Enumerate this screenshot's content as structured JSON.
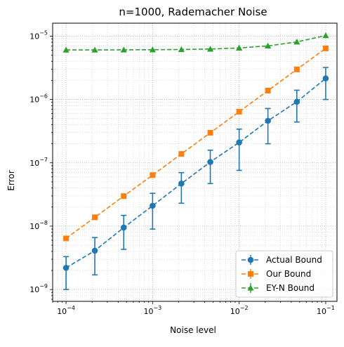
{
  "chart_data": {
    "type": "line",
    "title": "n=1000, Rademacher Noise",
    "xlabel": "Noise level",
    "ylabel": "Error",
    "xscale": "log",
    "yscale": "log",
    "xlim": [
      7e-05,
      0.135
    ],
    "ylim": [
      6.5e-10,
      1.6e-05
    ],
    "grid": true,
    "grid_style": "dotted, major and minor",
    "legend_position": "lower-right",
    "x_ticks": [
      {
        "base": "10",
        "exp": "−4",
        "value": 0.0001
      },
      {
        "base": "10",
        "exp": "−3",
        "value": 0.001
      },
      {
        "base": "10",
        "exp": "−2",
        "value": 0.01
      },
      {
        "base": "10",
        "exp": "−1",
        "value": 0.1
      }
    ],
    "y_ticks": [
      {
        "base": "10",
        "exp": "−9",
        "value": 1e-09
      },
      {
        "base": "10",
        "exp": "−8",
        "value": 1e-08
      },
      {
        "base": "10",
        "exp": "−7",
        "value": 1e-07
      },
      {
        "base": "10",
        "exp": "−6",
        "value": 1e-06
      },
      {
        "base": "10",
        "exp": "−5",
        "value": 1e-05
      }
    ],
    "x": [
      0.0001,
      0.000215,
      0.000464,
      0.001,
      0.00215,
      0.00464,
      0.01,
      0.0215,
      0.0464,
      0.1
    ],
    "series": [
      {
        "name": "Actual Bound",
        "color": "#1f77b4",
        "marker": "circle",
        "linestyle": "dashed",
        "values": [
          2.2e-09,
          4.1e-09,
          9.5e-09,
          2.1e-08,
          4.7e-08,
          1.03e-07,
          2.1e-07,
          4.6e-07,
          9.2e-07,
          2.15e-06
        ],
        "error_low": [
          1e-09,
          1.7e-09,
          4.3e-09,
          9e-09,
          2.3e-08,
          4.7e-08,
          7.6e-08,
          2e-07,
          4.4e-07,
          1e-06
        ],
        "error_high": [
          3.3e-09,
          6.6e-09,
          1.48e-08,
          3.3e-08,
          7e-08,
          1.58e-07,
          3.4e-07,
          7.2e-07,
          1.4e-06,
          3.2e-06
        ]
      },
      {
        "name": "Our Bound",
        "color": "#ff7f0e",
        "marker": "square",
        "linestyle": "dashed",
        "values": [
          6.4e-09,
          1.38e-08,
          2.98e-08,
          6.4e-08,
          1.38e-07,
          2.98e-07,
          6.4e-07,
          1.38e-06,
          2.98e-06,
          6.4e-06
        ]
      },
      {
        "name": "EY-N Bound",
        "color": "#2ca02c",
        "marker": "triangle",
        "linestyle": "dashed",
        "values": [
          6.05e-06,
          6.05e-06,
          6.07e-06,
          6.1e-06,
          6.15e-06,
          6.25e-06,
          6.5e-06,
          7e-06,
          8.1e-06,
          1.02e-05
        ]
      }
    ]
  }
}
